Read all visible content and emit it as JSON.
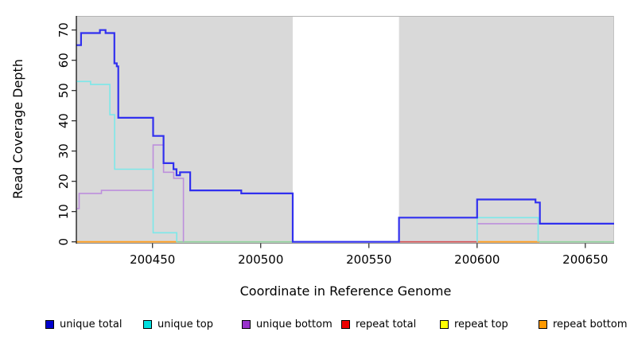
{
  "chart_data": {
    "type": "line",
    "subtype": "step-coverage-plot",
    "title": "",
    "xlabel": "Coordinate in Reference Genome",
    "ylabel": "Read Coverage Depth",
    "xlim": [
      200415,
      200663.3
    ],
    "ylim": [
      0,
      74
    ],
    "x_ticks": [
      "200450",
      "200500",
      "200550",
      "200600",
      "200650"
    ],
    "x_tick_values": [
      200450,
      200500,
      200550,
      200600,
      200650
    ],
    "y_ticks": [
      "0",
      "10",
      "20",
      "30",
      "40",
      "50",
      "60",
      "70"
    ],
    "y_tick_values": [
      0,
      10,
      20,
      30,
      40,
      50,
      60,
      70
    ],
    "grid": "off",
    "legend_position": "bottom",
    "plot_bg": "#d9d9d9",
    "gap_region": {
      "x1": 200514.8,
      "x2": 200563.9,
      "color": "#ffffff"
    },
    "series": [
      {
        "name": "unique total",
        "line_color": "#3130ef",
        "legend_color": "#0000cd",
        "width": 2.2,
        "paths": [
          [
            [
              200415,
              200417,
              65
            ],
            [
              200417,
              200425.7,
              69
            ],
            [
              200425.7,
              200428.3,
              70
            ],
            [
              200428.3,
              200432.4,
              69
            ],
            [
              200432.4,
              200433.5,
              59
            ],
            [
              200433.5,
              200434.2,
              58
            ],
            [
              200434.2,
              200450.3,
              41
            ],
            [
              200450.3,
              200455.1,
              35
            ],
            [
              200455.1,
              200459.7,
              26
            ],
            [
              200459.7,
              200461.1,
              24
            ],
            [
              200461.1,
              200462.7,
              22
            ],
            [
              200462.7,
              200467.4,
              23
            ],
            [
              200467.4,
              200491,
              17
            ],
            [
              200491,
              200514.8,
              16
            ],
            [
              200514.8,
              200563.9,
              0
            ],
            [
              200563.9,
              200600,
              8
            ],
            [
              200600,
              200627,
              14
            ],
            [
              200627,
              200629,
              13
            ],
            [
              200629,
              200663.3,
              6
            ]
          ]
        ]
      },
      {
        "name": "unique top",
        "line_color": "#7ce8e9",
        "legend_color": "#00e0e0",
        "width": 1.6,
        "paths": [
          [
            [
              200415,
              200421.4,
              53
            ],
            [
              200421.4,
              200430.3,
              52
            ],
            [
              200430.3,
              200432.5,
              42
            ],
            [
              200432.5,
              200450.3,
              24
            ],
            [
              200450.3,
              200461.2,
              3
            ],
            [
              200461.2,
              200461.2,
              0
            ]
          ],
          [
            [
              200600,
              200600,
              0
            ],
            [
              200600,
              200628.2,
              8
            ],
            [
              200628.2,
              200628.2,
              0
            ]
          ]
        ]
      },
      {
        "name": "unique bottom",
        "line_color": "#bd8fdc",
        "legend_color": "#9932cc",
        "width": 1.6,
        "paths": [
          [
            [
              200415,
              200416.1,
              11
            ],
            [
              200416.1,
              200426.4,
              16
            ],
            [
              200426.4,
              200450.3,
              17
            ],
            [
              200450.3,
              200455.1,
              32
            ],
            [
              200455.1,
              200459.8,
              23
            ],
            [
              200459.8,
              200464.3,
              21
            ],
            [
              200464.3,
              200464.3,
              0
            ]
          ],
          [
            [
              200514.8,
              200600,
              0
            ],
            [
              200600,
              200663.3,
              6
            ]
          ]
        ]
      },
      {
        "name": "repeat total",
        "line_color": "#d65151",
        "legend_color": "#ee0000",
        "width": 1.6,
        "paths": [
          [
            [
              200563.9,
              200600,
              0
            ]
          ]
        ]
      },
      {
        "name": "repeat top",
        "line_color": "#f2f23a",
        "legend_color": "#ffff00",
        "width": 1.6,
        "paths": []
      },
      {
        "name": "repeat bottom",
        "line_color": "#ff9e1f",
        "legend_color": "#ff9900",
        "width": 1.8,
        "paths": [
          [
            [
              200415,
              200461,
              0
            ]
          ],
          [
            [
              200600,
              200628.8,
              0
            ]
          ]
        ]
      }
    ],
    "overlap_line": {
      "name": "unique-top-repeat-top-overlap-at-zero",
      "color": "#8fd39b",
      "width": 1.6,
      "paths": [
        [
          [
            200461,
            200514.8,
            0
          ]
        ],
        [
          [
            200628.8,
            200663.3,
            0
          ]
        ]
      ]
    }
  }
}
